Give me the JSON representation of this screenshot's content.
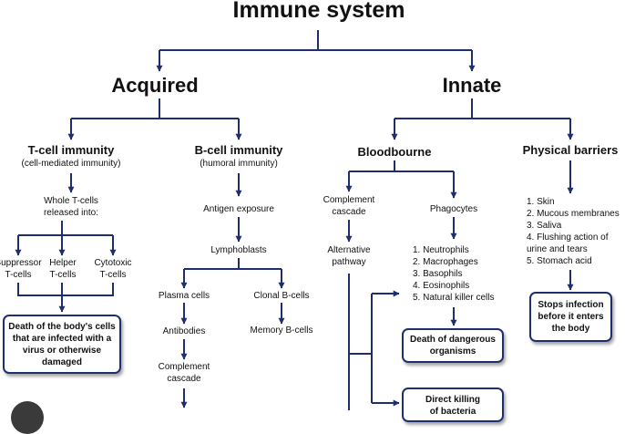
{
  "title": "Immune system",
  "branches": {
    "acquired": "Acquired",
    "innate": "Innate"
  },
  "acquired": {
    "t_cell": {
      "title": "T-cell immunity",
      "subtitle": "(cell-mediated immunity)",
      "released": "Whole T-cells\nreleased into:",
      "types": [
        "Suppressor\nT-cells",
        "Helper\nT-cells",
        "Cytotoxic\nT-cells"
      ],
      "outcome": "Death of the body's cells\nthat are infected with a\nvirus or otherwise\ndamaged"
    },
    "b_cell": {
      "title": "B-cell immunity",
      "subtitle": "(humoral immunity)",
      "antigen": "Antigen exposure",
      "lymphoblasts": "Lymphoblasts",
      "plasma": "Plasma cells",
      "clonal": "Clonal B-cells",
      "antibodies": "Antibodies",
      "memory": "Memory B-cells",
      "complement": "Complement\ncascade"
    }
  },
  "innate": {
    "bloodbourne": {
      "title": "Bloodbourne",
      "complement": "Complement\ncascade",
      "alternative": "Alternative\npathway",
      "phagocytes": "Phagocytes",
      "phagocyte_list": "1. Neutrophils\n2. Macrophages\n3. Basophils\n4. Eosinophils\n5. Natural killer cells",
      "death_box": "Death of dangerous\norganisms",
      "direct_box": "Direct killing\nof bacteria"
    },
    "physical": {
      "title": "Physical barriers",
      "list": "1. Skin\n2. Mucous membranes\n3. Saliva\n4. Flushing action of\n    urine and tears\n5. Stomach acid",
      "outcome": "Stops infection\nbefore it enters\nthe body"
    }
  },
  "colors": {
    "line": "#1f2f6e",
    "box_border": "#1f2f6e"
  }
}
